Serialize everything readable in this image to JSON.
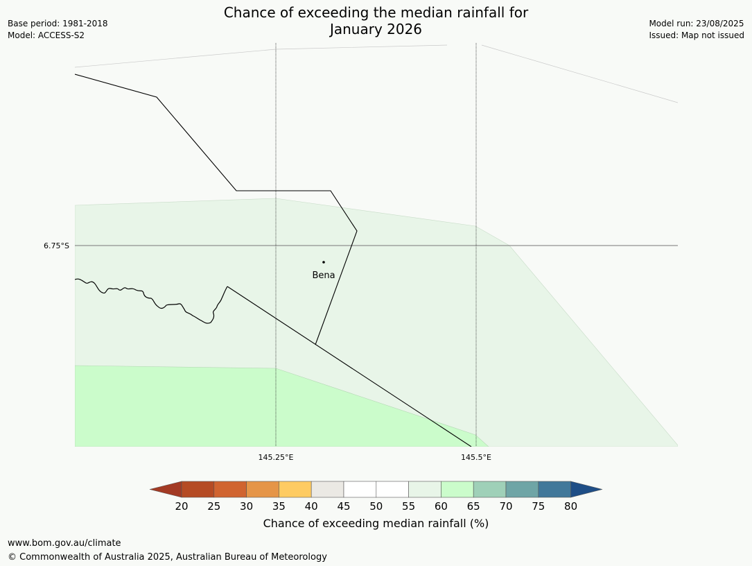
{
  "title_line1": "Chance of exceeding the median rainfall for",
  "title_line2": "January 2026",
  "meta_left": {
    "base_period": "Base period: 1981-2018",
    "model": "Model: ACCESS-S2"
  },
  "meta_right": {
    "model_run": "Model run: 23/08/2025",
    "issued": "Issued: Map not issued"
  },
  "map": {
    "lat_label": "6.75°S",
    "lon_labels": [
      "145.25°E",
      "145.5°E"
    ],
    "place_name": "Bena"
  },
  "colorbar": {
    "title": "Chance of exceeding median rainfall (%)",
    "ticks": [
      "20",
      "25",
      "30",
      "35",
      "40",
      "45",
      "50",
      "55",
      "60",
      "65",
      "70",
      "75",
      "80"
    ],
    "colors": [
      "#a33a24",
      "#b54b24",
      "#d06430",
      "#e59548",
      "#fecb62",
      "#ebe9e4",
      "#ffffff",
      "#ffffff",
      "#e8f5e8",
      "#cbfccb",
      "#9fd0b8",
      "#6fa5a6",
      "#41789a",
      "#1f4e86"
    ]
  },
  "footer": {
    "url": "www.bom.gov.au/climate",
    "copyright": "© Commonwealth of Australia 2025, Australian Bureau of Meteorology"
  }
}
